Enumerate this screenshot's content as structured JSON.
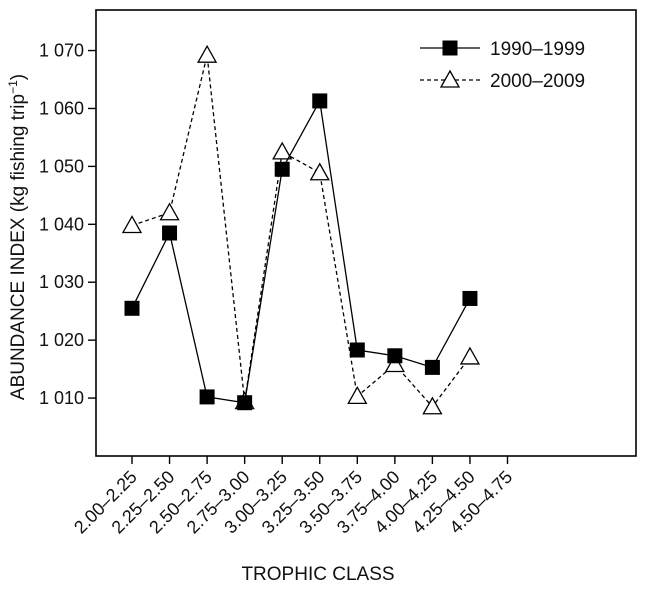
{
  "chart_data": {
    "type": "line",
    "title": "",
    "xlabel": "TROPHIC CLASS",
    "ylabel": "ABUNDANCE INDEX (kg fishing trip",
    "ylabel_superscript": "−1",
    "ylabel_suffix": ")",
    "categories": [
      "2.00–2.25",
      "2.25–2.50",
      "2.50–2.75",
      "2.75–3.00",
      "3.00–3.25",
      "3.25–3.50",
      "3.50–3.75",
      "3.75–4.00",
      "4.00–4.25",
      "4.25–4.50",
      "4.50–4.75"
    ],
    "yticks": [
      1010,
      1020,
      1030,
      1040,
      1050,
      1060,
      1070
    ],
    "ytick_labels": [
      "1 010",
      "1 020",
      "1 030",
      "1 040",
      "1 050",
      "1 060",
      "1 070"
    ],
    "ylim": [
      1000,
      1077
    ],
    "grid": false,
    "legend_position": "top-right",
    "series": [
      {
        "name": "1990–1999",
        "marker": "filled-square",
        "line_style": "solid",
        "color": "#000000",
        "values": [
          1025.5,
          1038.5,
          1010.2,
          1009.2,
          1049.5,
          1061.3,
          1018.3,
          1017.3,
          1015.3,
          1027.2,
          null
        ]
      },
      {
        "name": "2000–2009",
        "marker": "open-triangle",
        "line_style": "dashed",
        "color": "#000000",
        "values": [
          1039.8,
          1042.0,
          1069.2,
          1009.4,
          1052.5,
          1048.9,
          1010.3,
          1015.8,
          1008.5,
          1017.1,
          null
        ]
      }
    ]
  }
}
